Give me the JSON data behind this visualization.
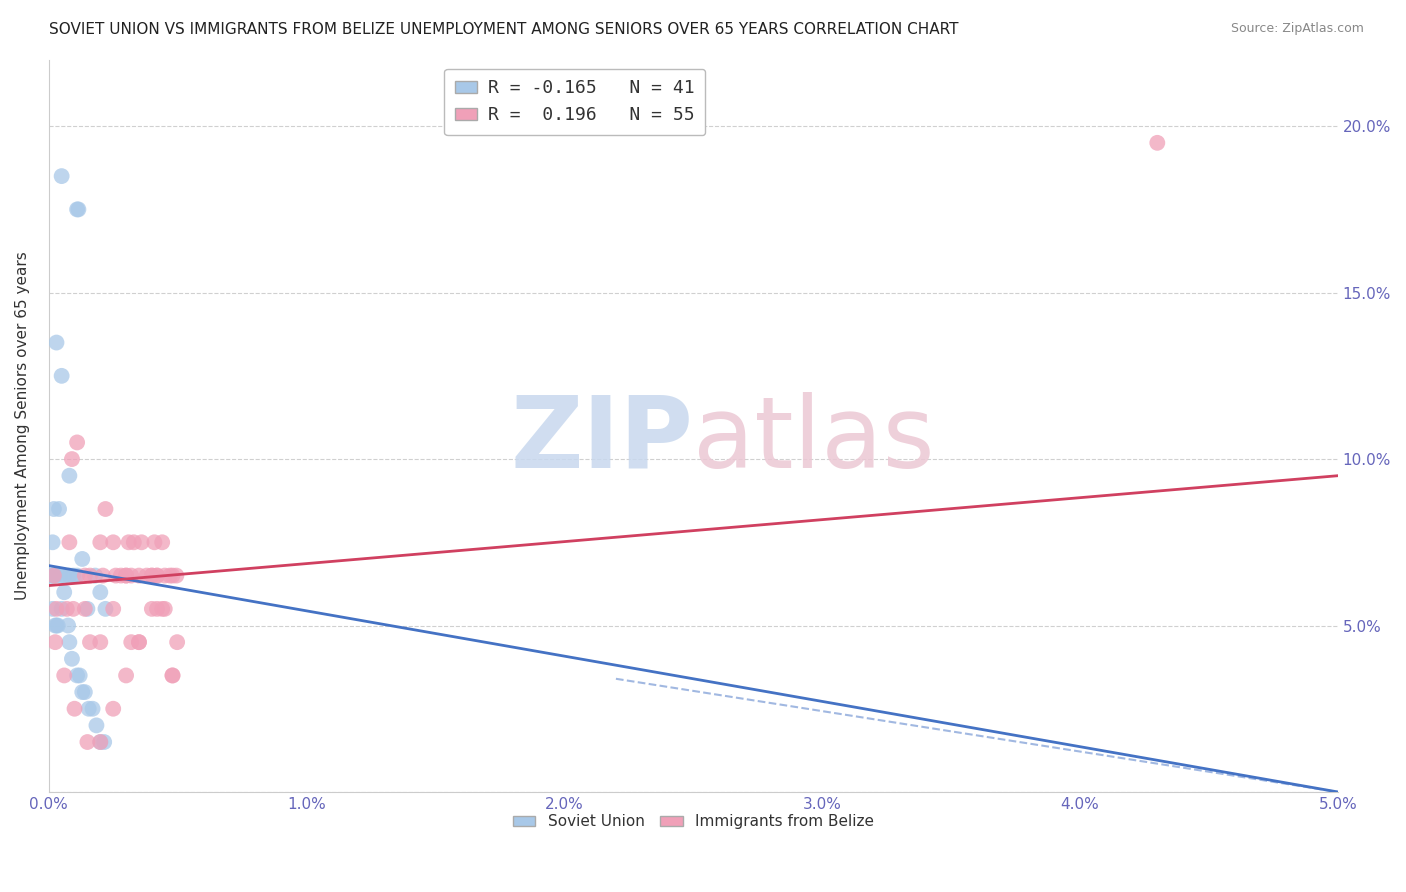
{
  "title": "SOVIET UNION VS IMMIGRANTS FROM BELIZE UNEMPLOYMENT AMONG SENIORS OVER 65 YEARS CORRELATION CHART",
  "source": "Source: ZipAtlas.com",
  "xlabel": "",
  "ylabel": "Unemployment Among Seniors over 65 years",
  "xlim": [
    0.0,
    0.05
  ],
  "ylim": [
    0.0,
    0.22
  ],
  "xticks": [
    0.0,
    0.01,
    0.02,
    0.03,
    0.04,
    0.05
  ],
  "yticks": [
    0.0,
    0.05,
    0.1,
    0.15,
    0.2
  ],
  "xticklabels": [
    "0.0%",
    "1.0%",
    "2.0%",
    "3.0%",
    "4.0%",
    "5.0%"
  ],
  "yticklabels": [
    "",
    "5.0%",
    "10.0%",
    "15.0%",
    "20.0%"
  ],
  "right_yticklabels": [
    "",
    "5.0%",
    "10.0%",
    "15.0%",
    "20.0%"
  ],
  "soviet_union_x": [
    0.0005,
    0.0011,
    0.00115,
    0.0003,
    0.0005,
    0.0008,
    0.0002,
    0.0004,
    0.00015,
    0.0001,
    8e-05,
    0.00015,
    0.00025,
    0.00045,
    0.0006,
    0.0008,
    0.00095,
    0.0011,
    0.0013,
    0.0015,
    0.0018,
    0.002,
    0.0022,
    0.00015,
    0.00025,
    0.0003,
    0.00035,
    0.0005,
    0.0006,
    0.00075,
    0.0008,
    0.0009,
    0.0011,
    0.0012,
    0.0013,
    0.0014,
    0.00155,
    0.0017,
    0.00185,
    0.002,
    0.00215
  ],
  "soviet_union_y": [
    0.185,
    0.175,
    0.175,
    0.135,
    0.125,
    0.095,
    0.085,
    0.085,
    0.075,
    0.065,
    0.065,
    0.065,
    0.065,
    0.065,
    0.065,
    0.065,
    0.065,
    0.065,
    0.07,
    0.055,
    0.065,
    0.06,
    0.055,
    0.055,
    0.05,
    0.05,
    0.05,
    0.055,
    0.06,
    0.05,
    0.045,
    0.04,
    0.035,
    0.035,
    0.03,
    0.03,
    0.025,
    0.025,
    0.02,
    0.015,
    0.015
  ],
  "belize_x": [
    0.0002,
    0.0008,
    0.0009,
    0.0011,
    0.0014,
    0.0016,
    0.002,
    0.0021,
    0.0022,
    0.0025,
    0.0026,
    0.0028,
    0.003,
    0.0031,
    0.0032,
    0.0033,
    0.0035,
    0.0036,
    0.0038,
    0.004,
    0.0041,
    0.0042,
    0.0044,
    0.0045,
    0.0047,
    0.0048,
    0.00495,
    0.0003,
    0.0007,
    0.00095,
    0.0014,
    0.0016,
    0.002,
    0.0025,
    0.003,
    0.0032,
    0.0035,
    0.004,
    0.0042,
    0.0045,
    0.0048,
    0.00498,
    0.00025,
    0.0006,
    0.001,
    0.0015,
    0.002,
    0.0025,
    0.003,
    0.0035,
    0.004,
    0.0042,
    0.0044,
    0.0048,
    0.043
  ],
  "belize_y": [
    0.065,
    0.075,
    0.1,
    0.105,
    0.065,
    0.065,
    0.075,
    0.065,
    0.085,
    0.075,
    0.065,
    0.065,
    0.065,
    0.075,
    0.065,
    0.075,
    0.065,
    0.075,
    0.065,
    0.065,
    0.075,
    0.065,
    0.075,
    0.065,
    0.065,
    0.065,
    0.065,
    0.055,
    0.055,
    0.055,
    0.055,
    0.045,
    0.045,
    0.055,
    0.065,
    0.045,
    0.045,
    0.065,
    0.055,
    0.055,
    0.035,
    0.045,
    0.045,
    0.035,
    0.025,
    0.015,
    0.015,
    0.025,
    0.035,
    0.045,
    0.055,
    0.065,
    0.055,
    0.035,
    0.195
  ],
  "soviet_r": -0.165,
  "soviet_n": 41,
  "belize_r": 0.196,
  "belize_n": 55,
  "blue_color": "#a8c8e8",
  "pink_color": "#f0a0b8",
  "blue_line_color": "#4472c4",
  "pink_line_color": "#d04060",
  "blue_line_x": [
    0.0,
    0.05
  ],
  "blue_line_y": [
    0.068,
    0.0
  ],
  "pink_line_x": [
    0.0,
    0.05
  ],
  "pink_line_y": [
    0.062,
    0.095
  ]
}
